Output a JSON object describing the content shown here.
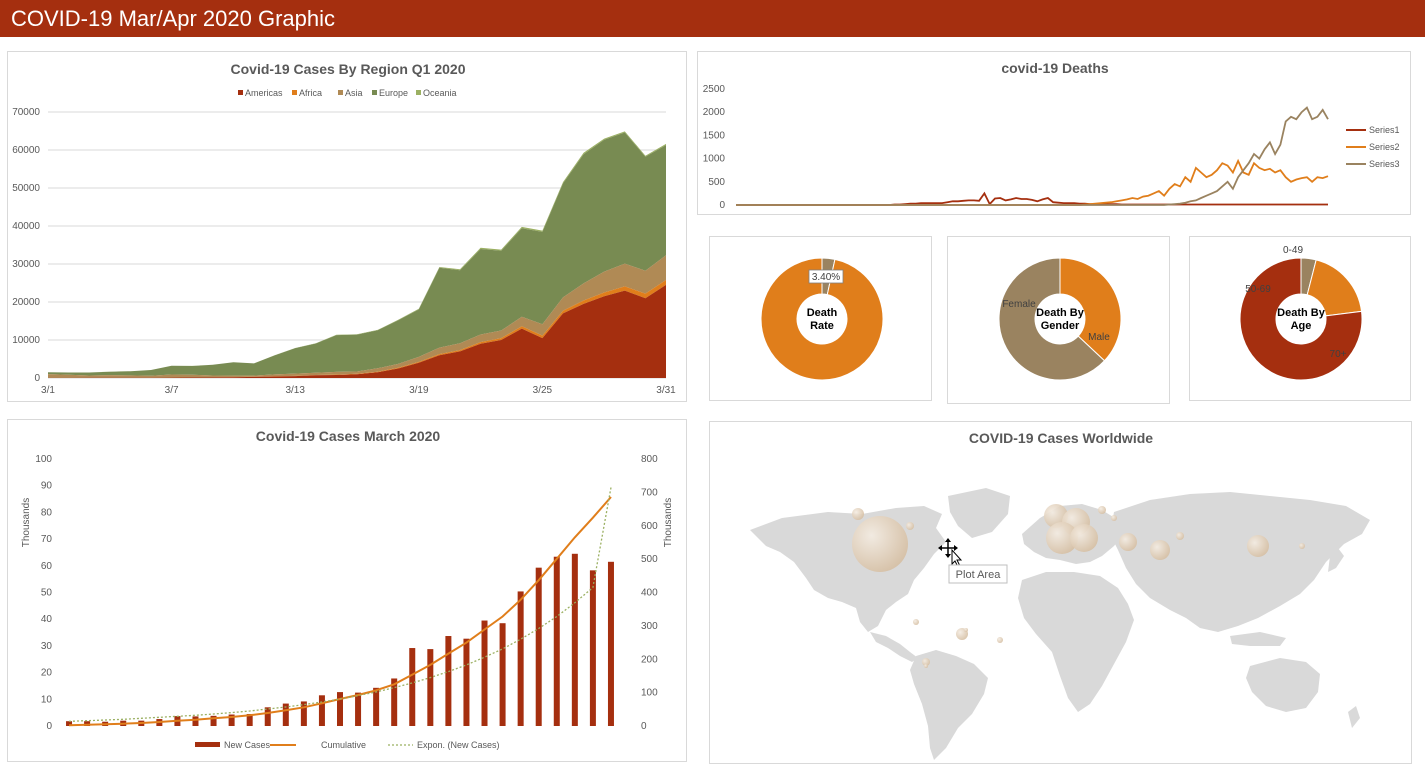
{
  "header": {
    "title": "COVID-19 Mar/Apr 2020 Graphic"
  },
  "palette": {
    "americas": "#a52f0f",
    "africa": "#e07e1b",
    "asia": "#b08a55",
    "europe": "#788b52",
    "oceania": "#9bb062",
    "s3": "#9a8360",
    "grid": "#d9d9d9",
    "map": "#d9d9d9"
  },
  "chart_data": [
    {
      "type": "area",
      "title": "Covid-19 Cases By Region Q1 2020",
      "stacked": true,
      "x": [
        "3/1",
        "3/2",
        "3/3",
        "3/4",
        "3/5",
        "3/6",
        "3/7",
        "3/8",
        "3/9",
        "3/10",
        "3/11",
        "3/12",
        "3/13",
        "3/14",
        "3/15",
        "3/16",
        "3/17",
        "3/18",
        "3/19",
        "3/20",
        "3/21",
        "3/22",
        "3/23",
        "3/24",
        "3/25",
        "3/26",
        "3/27",
        "3/28",
        "3/29",
        "3/30",
        "3/31"
      ],
      "xticks": [
        "3/1",
        "3/7",
        "3/13",
        "3/19",
        "3/25",
        "3/31"
      ],
      "yticks": [
        0,
        10000,
        20000,
        30000,
        40000,
        50000,
        60000,
        70000
      ],
      "ylim": [
        0,
        70000
      ],
      "legend_position": "top",
      "series": [
        {
          "name": "Americas",
          "values": [
            20,
            30,
            40,
            60,
            70,
            90,
            110,
            150,
            150,
            200,
            300,
            400,
            500,
            700,
            800,
            1000,
            1500,
            2500,
            4000,
            6000,
            7000,
            9000,
            10000,
            13000,
            10500,
            17000,
            19500,
            21500,
            23000,
            21000,
            24500
          ]
        },
        {
          "name": "Africa",
          "values": [
            5,
            5,
            5,
            10,
            10,
            10,
            10,
            15,
            20,
            25,
            30,
            40,
            60,
            80,
            100,
            120,
            150,
            200,
            250,
            300,
            350,
            450,
            500,
            600,
            650,
            700,
            900,
            1000,
            1100,
            1200,
            1300
          ]
        },
        {
          "name": "Asia",
          "values": [
            1000,
            800,
            600,
            700,
            600,
            500,
            800,
            700,
            500,
            400,
            300,
            500,
            600,
            600,
            700,
            600,
            900,
            1000,
            1300,
            1700,
            1800,
            2000,
            2000,
            2500,
            3000,
            3500,
            4500,
            5500,
            6000,
            6000,
            6500
          ]
        },
        {
          "name": "Europe",
          "values": [
            500,
            600,
            800,
            900,
            1100,
            1500,
            2300,
            2300,
            2800,
            3500,
            3200,
            5000,
            6700,
            7700,
            9700,
            9700,
            10000,
            11500,
            12500,
            21000,
            19200,
            22500,
            21000,
            23300,
            24300,
            30000,
            34000,
            34700,
            34500,
            30000,
            29000
          ]
        },
        {
          "name": "Oceania",
          "values": [
            5,
            5,
            5,
            5,
            5,
            5,
            10,
            10,
            10,
            15,
            20,
            30,
            40,
            60,
            80,
            100,
            120,
            150,
            150,
            200,
            250,
            300,
            300,
            350,
            350,
            350,
            350,
            300,
            300,
            300,
            300
          ]
        }
      ]
    },
    {
      "type": "line",
      "title": "covid-19 Deaths",
      "yticks": [
        0,
        500,
        1000,
        1500,
        2000,
        2500
      ],
      "ylim": [
        0,
        2500
      ],
      "legend_position": "right",
      "series": [
        {
          "name": "Series1",
          "values": [
            0,
            0,
            0,
            0,
            0,
            0,
            0,
            0,
            0,
            0,
            0,
            0,
            0,
            0,
            0,
            0,
            0,
            0,
            0,
            0,
            0,
            0,
            0,
            0,
            0,
            0,
            0,
            0,
            0,
            0,
            10,
            10,
            20,
            30,
            30,
            40,
            40,
            40,
            40,
            40,
            60,
            80,
            80,
            90,
            100,
            100,
            90,
            250,
            20,
            140,
            150,
            100,
            120,
            150,
            130,
            130,
            110,
            80,
            120,
            150,
            60,
            50,
            40,
            40,
            40,
            30,
            30,
            20,
            20,
            20,
            20,
            20,
            20,
            10,
            10,
            10,
            10,
            10,
            10,
            10,
            10,
            10,
            10,
            10,
            10,
            10,
            10,
            10,
            10,
            10,
            10,
            10,
            10,
            10,
            10,
            10,
            10,
            10,
            10,
            10,
            10,
            10,
            10,
            10,
            10,
            10,
            10,
            10,
            10,
            10,
            10,
            10,
            10
          ]
        },
        {
          "name": "Series2",
          "values": [
            0,
            0,
            0,
            0,
            0,
            0,
            0,
            0,
            0,
            0,
            0,
            0,
            0,
            0,
            0,
            0,
            0,
            0,
            0,
            0,
            0,
            0,
            0,
            0,
            0,
            0,
            0,
            0,
            0,
            0,
            0,
            0,
            0,
            0,
            0,
            0,
            0,
            0,
            0,
            0,
            0,
            0,
            0,
            0,
            0,
            0,
            0,
            0,
            0,
            0,
            0,
            0,
            0,
            0,
            0,
            0,
            0,
            0,
            0,
            0,
            0,
            0,
            0,
            0,
            0,
            0,
            10,
            20,
            30,
            40,
            50,
            60,
            80,
            100,
            120,
            150,
            130,
            180,
            200,
            250,
            300,
            200,
            350,
            450,
            400,
            600,
            500,
            800,
            700,
            600,
            650,
            750,
            900,
            850,
            700,
            950,
            700,
            650,
            900,
            800,
            750,
            780,
            700,
            750,
            600,
            500,
            550,
            580,
            600,
            500,
            600,
            580,
            620
          ]
        },
        {
          "name": "Series3",
          "values": [
            0,
            0,
            0,
            0,
            0,
            0,
            0,
            0,
            0,
            0,
            0,
            0,
            0,
            0,
            0,
            0,
            0,
            0,
            0,
            0,
            0,
            0,
            0,
            0,
            0,
            0,
            0,
            0,
            0,
            0,
            0,
            0,
            0,
            0,
            0,
            0,
            0,
            0,
            0,
            0,
            0,
            0,
            0,
            0,
            0,
            0,
            0,
            0,
            0,
            0,
            0,
            0,
            0,
            0,
            0,
            0,
            0,
            0,
            0,
            0,
            0,
            0,
            0,
            0,
            0,
            0,
            0,
            0,
            0,
            0,
            0,
            0,
            0,
            0,
            0,
            0,
            0,
            0,
            0,
            0,
            0,
            0,
            10,
            20,
            30,
            50,
            80,
            100,
            150,
            200,
            250,
            300,
            400,
            500,
            350,
            600,
            750,
            900,
            1100,
            1000,
            1200,
            1350,
            1100,
            1300,
            1800,
            1900,
            1850,
            2000,
            2100,
            1850,
            1900,
            2050,
            1850
          ]
        }
      ]
    },
    {
      "type": "pie",
      "center_label": [
        "Death",
        "Rate"
      ],
      "slices": [
        {
          "label": "3.40%",
          "value": 3.4
        },
        {
          "label": "",
          "value": 96.6
        }
      ]
    },
    {
      "type": "pie",
      "center_label": [
        "Death By",
        "Gender"
      ],
      "slices": [
        {
          "label": "Female",
          "value": 37
        },
        {
          "label": "Male",
          "value": 63
        }
      ]
    },
    {
      "type": "pie",
      "center_label": [
        "Death By",
        "Age"
      ],
      "slices": [
        {
          "label": "0-49",
          "value": 4
        },
        {
          "label": "50-69",
          "value": 19
        },
        {
          "label": "70+",
          "value": 77
        }
      ]
    },
    {
      "type": "bar",
      "title": "Covid-19 Cases March 2020",
      "ylabel": "Thousands",
      "y2label": "Thousands",
      "yticks": [
        0,
        10,
        20,
        30,
        40,
        50,
        60,
        70,
        80,
        90,
        100
      ],
      "y2ticks": [
        0,
        100,
        200,
        300,
        400,
        500,
        600,
        700,
        800
      ],
      "ylim": [
        0,
        100
      ],
      "y2lim": [
        0,
        800
      ],
      "legend_position": "bottom",
      "series": [
        {
          "name": "New Cases",
          "axis": "left",
          "values": [
            1.8,
            1.8,
            1.6,
            2,
            2,
            2.6,
            3.7,
            3.6,
            3.8,
            4.3,
            4.5,
            7,
            8.4,
            9.2,
            11.5,
            12.7,
            12.5,
            14.3,
            17.8,
            29.2,
            28.8,
            33.7,
            32.7,
            39.5,
            38.5,
            50.4,
            59.3,
            63.4,
            64.5,
            58.3,
            61.5
          ]
        },
        {
          "name": "Cumulative",
          "axis": "right",
          "values": [
            2,
            4,
            5,
            7,
            9,
            12,
            16,
            19,
            23,
            27,
            32,
            39,
            47,
            56,
            68,
            81,
            93,
            107,
            125,
            154,
            183,
            217,
            250,
            289,
            328,
            378,
            437,
            501,
            565,
            624,
            686
          ]
        },
        {
          "name": "Expon. (New Cases)",
          "axis": "right",
          "trend": true,
          "values": [
            14,
            16,
            18,
            20,
            23,
            26,
            29,
            32,
            36,
            40,
            45,
            51,
            57,
            64,
            72,
            81,
            91,
            102,
            115,
            129,
            145,
            163,
            183,
            206,
            231,
            260,
            292,
            328,
            369,
            415,
            715
          ]
        }
      ]
    }
  ],
  "panels": {
    "worldwide_title": "COVID-19 Cases Worldwide"
  },
  "tooltip": {
    "text": "Plot Area"
  }
}
